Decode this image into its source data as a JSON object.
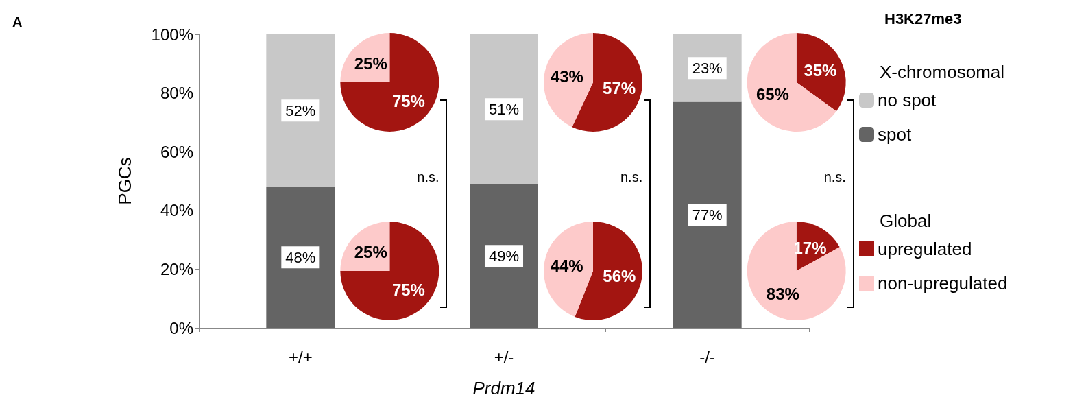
{
  "chart_data": [
    {
      "type": "bar",
      "xlabel": "Prdm14",
      "ylabel": "PGCs",
      "legend_title": "X-chromosomal",
      "legend": "right",
      "stacked": true,
      "annotations": [
        "A",
        "n.s.",
        "n.s.",
        "n.s.",
        "H3K27me3"
      ],
      "categories": [
        "+/+",
        "+/-",
        "-/-"
      ],
      "series": [
        {
          "name": "spot",
          "color": "#646464",
          "values": [
            48,
            49,
            77
          ],
          "value_labels": [
            "48%",
            "49%",
            "77%"
          ]
        },
        {
          "name": "no spot",
          "color": "#c8c8c8",
          "values": [
            52,
            51,
            23
          ],
          "value_labels": [
            "52%",
            "51%",
            "23%"
          ]
        }
      ],
      "ylim": [
        0,
        100
      ],
      "yticks": [
        {
          "value": 0,
          "label": "0%"
        },
        {
          "value": 20,
          "label": "20%"
        },
        {
          "value": 40,
          "label": "40%"
        },
        {
          "value": 60,
          "label": "60%"
        },
        {
          "value": 80,
          "label": "80%"
        },
        {
          "value": 100,
          "label": "100%"
        }
      ]
    },
    {
      "type": "pie",
      "legend": "right",
      "legend_title": "Global",
      "categories": [
        "upregulated",
        "non-upregulated"
      ],
      "values": [
        75,
        25
      ],
      "colors": [
        "#a31511",
        "#fdcaca"
      ],
      "value_labels": [
        "75%",
        "25%"
      ]
    },
    {
      "type": "pie",
      "categories": [
        null,
        null
      ],
      "values": [
        57,
        43
      ],
      "colors": [
        "#a31511",
        "#fdcaca"
      ],
      "value_labels": [
        "57%",
        "43%"
      ]
    },
    {
      "type": "pie",
      "categories": [
        null,
        null
      ],
      "values": [
        35,
        65
      ],
      "colors": [
        "#a31511",
        "#fdcaca"
      ],
      "value_labels": [
        "35%",
        "65%"
      ]
    },
    {
      "type": "pie",
      "categories": [
        null,
        null
      ],
      "values": [
        75,
        25
      ],
      "colors": [
        "#a31511",
        "#fdcaca"
      ],
      "value_labels": [
        "75%",
        "25%"
      ]
    },
    {
      "type": "pie",
      "categories": [
        null,
        null
      ],
      "values": [
        56,
        44
      ],
      "colors": [
        "#a31511",
        "#fdcaca"
      ],
      "value_labels": [
        "56%",
        "44%"
      ]
    },
    {
      "type": "pie",
      "categories": [
        null,
        null
      ],
      "values": [
        17,
        83
      ],
      "colors": [
        "#a31511",
        "#fdcaca"
      ],
      "value_labels": [
        "17%",
        "83%"
      ]
    }
  ]
}
